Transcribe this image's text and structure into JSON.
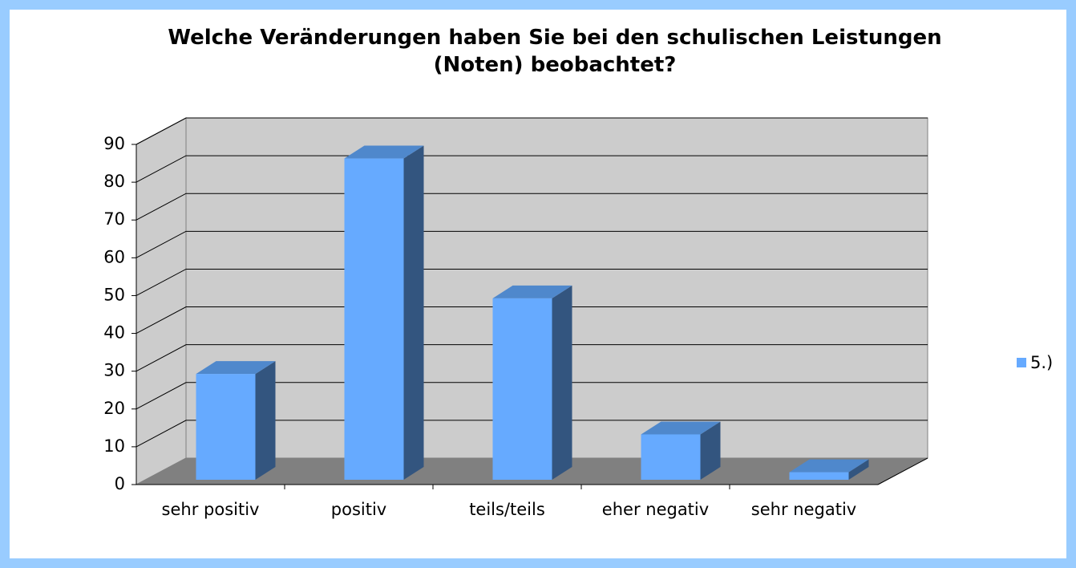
{
  "chart_data": {
    "type": "bar3d",
    "title": "Welche Veränderungen haben Sie bei den schulischen Leistungen (Noten) beobachtet?",
    "categories": [
      "sehr positiv",
      "positiv",
      "teils/teils",
      "eher negativ",
      "sehr negativ"
    ],
    "series": [
      {
        "name": "5.)",
        "color": "#66aaff",
        "values": [
          28,
          85,
          48,
          12,
          2
        ]
      }
    ],
    "ylim": [
      0,
      90
    ],
    "yticks": [
      0,
      10,
      20,
      30,
      40,
      50,
      60,
      70,
      80,
      90
    ],
    "grid": true,
    "legend": "right"
  }
}
